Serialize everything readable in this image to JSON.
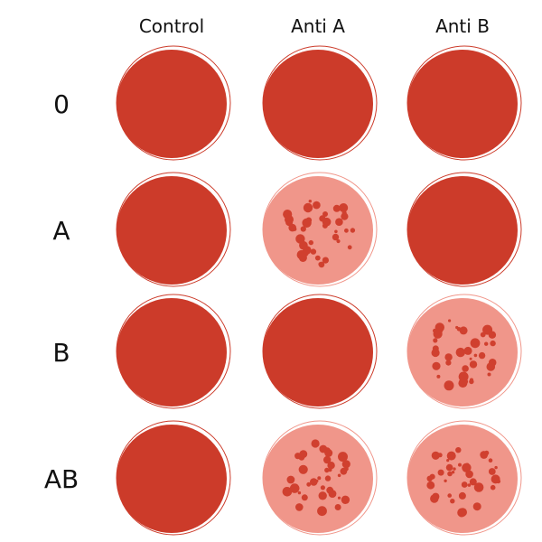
{
  "columns": [
    "Control",
    "Anti A",
    "Anti B"
  ],
  "rows": [
    "0",
    "A",
    "B",
    "AB"
  ]
}
